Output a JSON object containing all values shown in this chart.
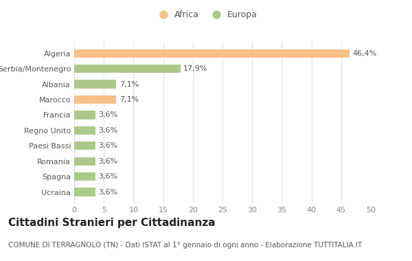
{
  "categories": [
    "Ucraina",
    "Spagna",
    "Romania",
    "Paesi Bassi",
    "Regno Unito",
    "Francia",
    "Marocco",
    "Albania",
    "Serbia/Montenegro",
    "Algeria"
  ],
  "values": [
    3.6,
    3.6,
    3.6,
    3.6,
    3.6,
    3.6,
    7.1,
    7.1,
    17.9,
    46.4
  ],
  "labels": [
    "3,6%",
    "3,6%",
    "3,6%",
    "3,6%",
    "3,6%",
    "3,6%",
    "7,1%",
    "7,1%",
    "17,9%",
    "46,4%"
  ],
  "colors": [
    "#adc98a",
    "#adc98a",
    "#adc98a",
    "#adc98a",
    "#adc98a",
    "#adc98a",
    "#f5c08a",
    "#adc98a",
    "#adc98a",
    "#f5c08a"
  ],
  "africa_color": "#f5c08a",
  "europa_color": "#adc98a",
  "xlim": [
    0,
    50
  ],
  "xticks": [
    0,
    5,
    10,
    15,
    20,
    25,
    30,
    35,
    40,
    45,
    50
  ],
  "title": "Cittadini Stranieri per Cittadinanza",
  "subtitle": "COMUNE DI TERRAGNOLO (TN) - Dati ISTAT al 1° gennaio di ogni anno - Elaborazione TUTTITALIA.IT",
  "legend_africa": "Africa",
  "legend_europa": "Europa",
  "background_color": "#ffffff",
  "grid_color": "#e0e0e0",
  "bar_height": 0.55,
  "label_fontsize": 8,
  "title_fontsize": 11,
  "subtitle_fontsize": 7.5,
  "tick_fontsize": 8,
  "ytick_fontsize": 8,
  "text_color": "#555555",
  "title_color": "#222222"
}
